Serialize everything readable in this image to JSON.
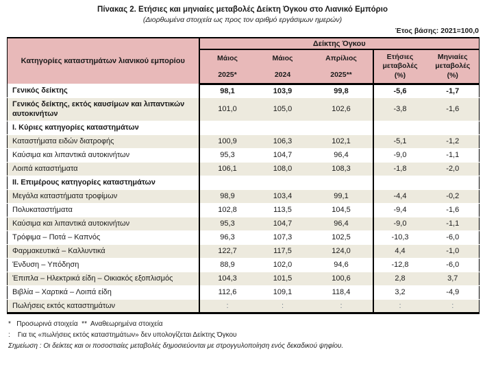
{
  "header": {
    "title": "Πίνακας 2. Ετήσιες και μηνιαίες μεταβολές Δείκτη Όγκου στο Λιανικό Εμπόριο",
    "subtitle": "(Διορθωμένα στοιχεία ως προς τον αριθμό εργάσιμων ημερών)",
    "base_year": "Έτος βάσης: 2021=100,0"
  },
  "table": {
    "category_header": "Κατηγορίες καταστημάτων λιανικού εμπορίου",
    "index_header": "Δείκτης Όγκου",
    "columns": [
      {
        "line1": "Μάιος",
        "line2": "2025*"
      },
      {
        "line1": "Μάιος",
        "line2": "2024"
      },
      {
        "line1": "Απρίλιος",
        "line2": "2025**"
      },
      {
        "line1": "Ετήσιες",
        "line2": "μεταβολές",
        "line3": "(%)"
      },
      {
        "line1": "Μηνιαίες",
        "line2": "μεταβολές",
        "line3": "(%)"
      }
    ],
    "rows": [
      {
        "label": "Γενικός δείκτης",
        "values": [
          "98,1",
          "103,9",
          "99,8",
          "-5,6",
          "-1,7"
        ],
        "style": "bold"
      },
      {
        "label": "Γενικός δείκτης, εκτός καυσίμων και λιπαντικών αυτοκινήτων",
        "values": [
          "101,0",
          "105,0",
          "102,6",
          "-3,8",
          "-1,6"
        ],
        "style": "boldLabel"
      },
      {
        "label": "Ι. Κύριες κατηγορίες καταστημάτων",
        "values": [
          "",
          "",
          "",
          "",
          ""
        ],
        "style": "section"
      },
      {
        "label": "Καταστήματα ειδών διατροφής",
        "values": [
          "100,9",
          "106,3",
          "102,1",
          "-5,1",
          "-1,2"
        ],
        "style": "normal"
      },
      {
        "label": "Καύσιμα και λιπαντικά αυτοκινήτων",
        "values": [
          "95,3",
          "104,7",
          "96,4",
          "-9,0",
          "-1,1"
        ],
        "style": "normal"
      },
      {
        "label": "Λοιπά καταστήματα",
        "values": [
          "106,1",
          "108,0",
          "108,3",
          "-1,8",
          "-2,0"
        ],
        "style": "normal"
      },
      {
        "label": "ΙΙ. Επιμέρους κατηγορίες καταστημάτων",
        "values": [
          "",
          "",
          "",
          "",
          ""
        ],
        "style": "section"
      },
      {
        "label": "Μεγάλα καταστήματα τροφίμων",
        "values": [
          "98,9",
          "103,4",
          "99,1",
          "-4,4",
          "-0,2"
        ],
        "style": "normal"
      },
      {
        "label": "Πολυκαταστήματα",
        "values": [
          "102,8",
          "113,5",
          "104,5",
          "-9,4",
          "-1,6"
        ],
        "style": "normal"
      },
      {
        "label": "Καύσιμα και λιπαντικά αυτοκινήτων",
        "values": [
          "95,3",
          "104,7",
          "96,4",
          "-9,0",
          "-1,1"
        ],
        "style": "normal"
      },
      {
        "label": "Τρόφιμα – Ποτά – Καπνός",
        "values": [
          "96,3",
          "107,3",
          "102,5",
          "-10,3",
          "-6,0"
        ],
        "style": "normal"
      },
      {
        "label": "Φαρμακευτικά – Καλλυντικά",
        "values": [
          "122,7",
          "117,5",
          "124,0",
          "4,4",
          "-1,0"
        ],
        "style": "normal"
      },
      {
        "label": "Ένδυση – Υπόδηση",
        "values": [
          "88,9",
          "102,0",
          "94,6",
          "-12,8",
          "-6,0"
        ],
        "style": "normal"
      },
      {
        "label": "Έπιπλα – Ηλεκτρικά είδη – Οικιακός εξοπλισμός",
        "values": [
          "104,3",
          "101,5",
          "100,6",
          "2,8",
          "3,7"
        ],
        "style": "normal"
      },
      {
        "label": "Βιβλία – Χαρτικά – Λοιπά είδη",
        "values": [
          "112,6",
          "109,1",
          "118,4",
          "3,2",
          "-4,9"
        ],
        "style": "normal"
      },
      {
        "label": "Πωλήσεις εκτός καταστημάτων",
        "values": [
          ":",
          ":",
          ":",
          ":",
          ":"
        ],
        "style": "muted"
      }
    ]
  },
  "footnotes": {
    "line1": "*   Προσωρινά στοιχεία  **  Αναθεωρημένα στοιχεία",
    "line2": ":    Για τις «πωλήσεις εκτός καταστημάτων» δεν υπολογίζεται Δείκτης Όγκου",
    "note": "Σημείωση : Οι δείκτες και οι ποσοστιαίες μεταβολές δημοσιεύονται με στρογγυλοποίηση ενός δεκαδικού ψηφίου."
  },
  "colors": {
    "header_pink": "#e8b9b9",
    "row_stripe": "#edeade",
    "muted_value": "#6e7b87",
    "border": "#000000"
  }
}
